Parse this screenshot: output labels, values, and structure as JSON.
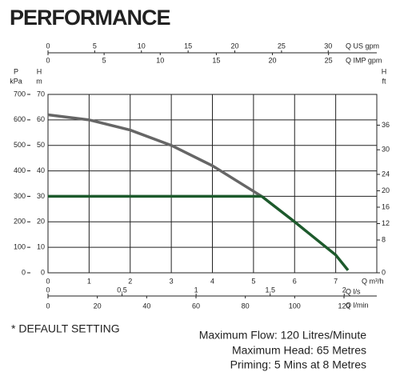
{
  "chart_data": {
    "type": "line",
    "title": "PERFORMANCE",
    "xlabel": "Q m³/h",
    "xlim": [
      0,
      8
    ],
    "xticks": [
      0,
      1,
      2,
      3,
      4,
      5,
      6,
      7
    ],
    "ylabel": "H",
    "yunit": "m",
    "ylim": [
      0,
      70
    ],
    "yticks": [
      0,
      10,
      20,
      30,
      40,
      50,
      60,
      70
    ],
    "pressure_axis": {
      "label": "P",
      "unit": "kPa",
      "lim": [
        0,
        700
      ],
      "ticks": [
        0,
        100,
        200,
        300,
        400,
        500,
        600,
        700
      ]
    },
    "y2label": "H",
    "y2unit": "ft",
    "y2lim": [
      0,
      43.5
    ],
    "y2ticks": [
      0,
      8,
      12,
      16,
      20,
      24,
      30,
      36
    ],
    "top_axes": [
      {
        "label": "Q US gpm",
        "lim": [
          0,
          35.2
        ],
        "ticks": [
          0,
          5,
          10,
          15,
          20,
          25,
          30
        ]
      },
      {
        "label": "Q IMP gpm",
        "lim": [
          0,
          29.3
        ],
        "ticks": [
          0,
          5,
          10,
          15,
          20,
          25
        ]
      }
    ],
    "bottom_axes": [
      {
        "label": "Q l/s",
        "lim": [
          0,
          2.22
        ],
        "ticks": [
          0,
          {
            "value": 0.5,
            "label": "0,5"
          },
          1,
          {
            "value": 1.5,
            "label": "1,5"
          },
          2
        ]
      },
      {
        "label": "Q l/min",
        "lim": [
          0,
          133.3
        ],
        "ticks": [
          0,
          20,
          40,
          60,
          80,
          100,
          120
        ]
      }
    ],
    "grid": true,
    "series": [
      {
        "color": "#666666",
        "x": [
          0,
          1,
          2,
          3,
          4,
          5,
          5.2
        ],
        "values": [
          62,
          60,
          56,
          50,
          42,
          32,
          30
        ]
      },
      {
        "color": "#1d5a2c",
        "x": [
          0,
          5.2
        ],
        "values": [
          30,
          30
        ]
      },
      {
        "color": "#1d5a2c",
        "x": [
          5.2,
          6,
          7,
          7.3
        ],
        "values": [
          30,
          20,
          7,
          1
        ]
      }
    ],
    "notes": [
      "* DEFAULT SETTING",
      "Maximum Flow: 120 Litres/Minute",
      "Maximum Head: 65 Metres",
      "Priming: 5 Mins at 8 Metres"
    ]
  }
}
